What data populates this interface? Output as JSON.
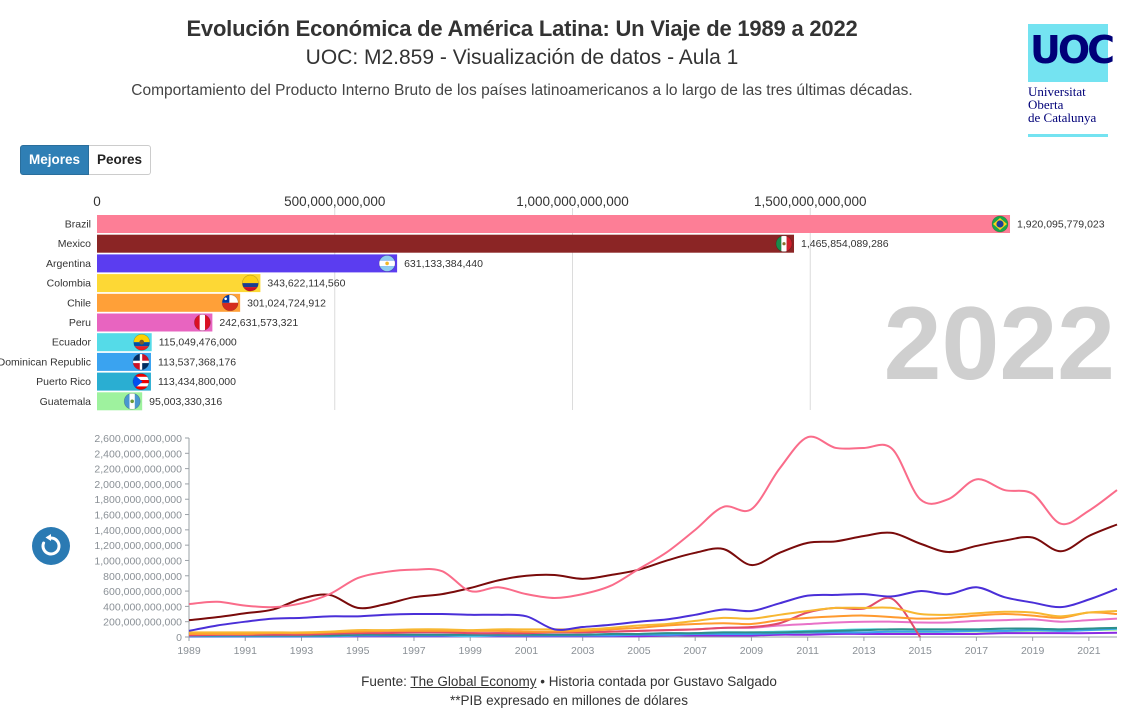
{
  "header": {
    "title": "Evolución Económica de América Latina: Un Viaje de 1989 a 2022",
    "subtitle": "UOC: M2.859 - Visualización de datos - Aula 1",
    "description": "Comportamiento del Producto Interno Bruto de los países latinoamericanos a lo largo de las tres últimas décadas."
  },
  "logo": {
    "mark": "UOC",
    "line1": "Universitat",
    "line2": "Oberta",
    "line3": "de Catalunya",
    "color": "#000078",
    "bg": "#74e3f1"
  },
  "toggle": {
    "best_label": "Mejores",
    "worst_label": "Peores",
    "active": "Mejores"
  },
  "year_label": "2022",
  "replay_icon": "replay-icon",
  "footer": {
    "source_prefix": "Fuente: ",
    "source_link": "The Global Economy",
    "source_suffix": " • Historia contada por Gustavo Salgado",
    "note": "**PIB expresado en millones de dólares"
  },
  "chart_data": [
    {
      "type": "bar",
      "orientation": "horizontal",
      "year": "2022",
      "x_ticks": [
        "0",
        "500,000,000,000",
        "1,000,000,000,000",
        "1,500,000,000,000"
      ],
      "xlim": [
        0,
        2000000000000
      ],
      "bars": [
        {
          "name": "Brazil",
          "value": 1920095779023,
          "label": "1,920,095,779,023",
          "color": "#fd7e96",
          "flag": "brazil"
        },
        {
          "name": "Mexico",
          "value": 1465854089286,
          "label": "1,465,854,089,286",
          "color": "#8b2525",
          "flag": "mexico"
        },
        {
          "name": "Argentina",
          "value": 631133384440,
          "label": "631,133,384,440",
          "color": "#5b3df0",
          "flag": "argentina"
        },
        {
          "name": "Colombia",
          "value": 343622114560,
          "label": "343,622,114,560",
          "color": "#fdd835",
          "flag": "colombia"
        },
        {
          "name": "Chile",
          "value": 301024724912,
          "label": "301,024,724,912",
          "color": "#ffa038",
          "flag": "chile"
        },
        {
          "name": "Peru",
          "value": 242631573321,
          "label": "242,631,573,321",
          "color": "#e864c0",
          "flag": "peru"
        },
        {
          "name": "Ecuador",
          "value": 115049476000,
          "label": "115,049,476,000",
          "color": "#55dbe8",
          "flag": "ecuador"
        },
        {
          "name": "Dominican Republic",
          "value": 113537368176,
          "label": "113,537,368,176",
          "color": "#3aa3f0",
          "flag": "dominican"
        },
        {
          "name": "Puerto Rico",
          "value": 113434800000,
          "label": "113,434,800,000",
          "color": "#2aaed2",
          "flag": "puertorico"
        },
        {
          "name": "Guatemala",
          "value": 95003330316,
          "label": "95,003,330,316",
          "color": "#9ef29e",
          "flag": "guatemala"
        }
      ]
    },
    {
      "type": "line",
      "x": [
        1989,
        1990,
        1991,
        1992,
        1993,
        1994,
        1995,
        1996,
        1997,
        1998,
        1999,
        2000,
        2001,
        2002,
        2003,
        2004,
        2005,
        2006,
        2007,
        2008,
        2009,
        2010,
        2011,
        2012,
        2013,
        2014,
        2015,
        2016,
        2017,
        2018,
        2019,
        2020,
        2021,
        2022
      ],
      "x_ticks": [
        "1989",
        "1991",
        "1993",
        "1995",
        "1997",
        "1999",
        "2001",
        "2003",
        "2005",
        "2007",
        "2009",
        "2011",
        "2013",
        "2015",
        "2017",
        "2019",
        "2021"
      ],
      "y_ticks": [
        "0",
        "200,000,000,000",
        "400,000,000,000",
        "600,000,000,000",
        "800,000,000,000",
        "1,000,000,000,000",
        "1,200,000,000,000",
        "1,400,000,000,000",
        "1,600,000,000,000",
        "1,800,000,000,000",
        "2,000,000,000,000",
        "2,200,000,000,000",
        "2,400,000,000,000",
        "2,600,000,000,000"
      ],
      "ylim": [
        0,
        2600000000000
      ],
      "series": [
        {
          "color": "#fa6c8a",
          "values": [
            430,
            460,
            410,
            390,
            440,
            560,
            770,
            850,
            880,
            860,
            600,
            650,
            560,
            510,
            560,
            670,
            890,
            1110,
            1400,
            1700,
            1670,
            2200,
            2610,
            2470,
            2470,
            2460,
            1800,
            1800,
            2060,
            1920,
            1870,
            1480,
            1650,
            1920
          ]
        },
        {
          "color": "#7a0b0b",
          "values": [
            220,
            260,
            310,
            360,
            500,
            550,
            380,
            430,
            520,
            560,
            640,
            740,
            800,
            810,
            760,
            810,
            880,
            1000,
            1100,
            1150,
            940,
            1100,
            1230,
            1250,
            1320,
            1360,
            1220,
            1110,
            1190,
            1260,
            1300,
            1120,
            1320,
            1470
          ]
        },
        {
          "color": "#4a2fd8",
          "values": [
            80,
            150,
            200,
            240,
            250,
            270,
            270,
            290,
            300,
            300,
            290,
            290,
            270,
            100,
            130,
            160,
            200,
            230,
            290,
            360,
            340,
            440,
            540,
            550,
            560,
            530,
            600,
            560,
            650,
            520,
            450,
            390,
            490,
            630
          ]
        },
        {
          "color": "#f7b731",
          "values": [
            60,
            60,
            60,
            60,
            60,
            70,
            90,
            90,
            100,
            100,
            90,
            100,
            100,
            100,
            100,
            120,
            150,
            170,
            210,
            250,
            240,
            290,
            340,
            380,
            380,
            380,
            300,
            290,
            310,
            330,
            320,
            270,
            320,
            340
          ]
        },
        {
          "color": "#ff9a2f",
          "values": [
            40,
            40,
            40,
            50,
            50,
            60,
            70,
            80,
            80,
            80,
            80,
            80,
            70,
            70,
            80,
            100,
            120,
            150,
            170,
            180,
            170,
            220,
            250,
            270,
            280,
            260,
            240,
            250,
            280,
            300,
            280,
            250,
            320,
            300
          ]
        },
        {
          "color": "#e14b6a",
          "values": [
            20,
            30,
            30,
            30,
            30,
            40,
            50,
            50,
            60,
            60,
            50,
            50,
            50,
            60,
            60,
            70,
            80,
            90,
            100,
            120,
            130,
            180,
            320,
            380,
            370,
            500,
            0,
            null,
            null,
            null,
            null,
            null,
            null,
            null
          ]
        },
        {
          "color": "#e872c8",
          "values": [
            30,
            30,
            30,
            40,
            40,
            50,
            50,
            60,
            60,
            60,
            50,
            50,
            50,
            60,
            60,
            70,
            80,
            90,
            100,
            120,
            120,
            150,
            170,
            190,
            200,
            200,
            190,
            190,
            210,
            220,
            230,
            200,
            220,
            240
          ]
        },
        {
          "color": "#2d8f8a",
          "values": [
            20,
            20,
            20,
            20,
            20,
            20,
            30,
            30,
            30,
            30,
            30,
            30,
            30,
            30,
            30,
            40,
            40,
            50,
            50,
            60,
            60,
            60,
            70,
            80,
            90,
            100,
            100,
            100,
            100,
            110,
            110,
            100,
            110,
            120
          ]
        },
        {
          "color": "#3aa3f0",
          "values": [
            10,
            10,
            10,
            10,
            10,
            10,
            20,
            20,
            20,
            20,
            20,
            20,
            20,
            20,
            20,
            20,
            30,
            30,
            40,
            40,
            40,
            50,
            60,
            60,
            60,
            70,
            70,
            70,
            80,
            80,
            90,
            80,
            90,
            110
          ]
        },
        {
          "color": "#55dbe8",
          "values": [
            10,
            10,
            10,
            10,
            10,
            10,
            20,
            20,
            20,
            20,
            10,
            20,
            20,
            20,
            30,
            30,
            40,
            40,
            50,
            60,
            60,
            70,
            80,
            90,
            100,
            100,
            100,
            100,
            100,
            110,
            110,
            100,
            110,
            115
          ]
        },
        {
          "color": "#8a2be2",
          "values": [
            5,
            5,
            5,
            5,
            5,
            5,
            10,
            10,
            10,
            10,
            10,
            10,
            10,
            10,
            10,
            10,
            10,
            20,
            20,
            20,
            20,
            30,
            30,
            40,
            40,
            40,
            40,
            40,
            40,
            50,
            50,
            50,
            50,
            55
          ]
        },
        {
          "color": "#9ef29e",
          "values": [
            10,
            10,
            10,
            10,
            10,
            10,
            20,
            20,
            20,
            20,
            20,
            20,
            20,
            20,
            20,
            30,
            30,
            30,
            40,
            40,
            40,
            40,
            50,
            50,
            50,
            60,
            60,
            70,
            70,
            70,
            80,
            80,
            90,
            95
          ]
        }
      ]
    }
  ]
}
